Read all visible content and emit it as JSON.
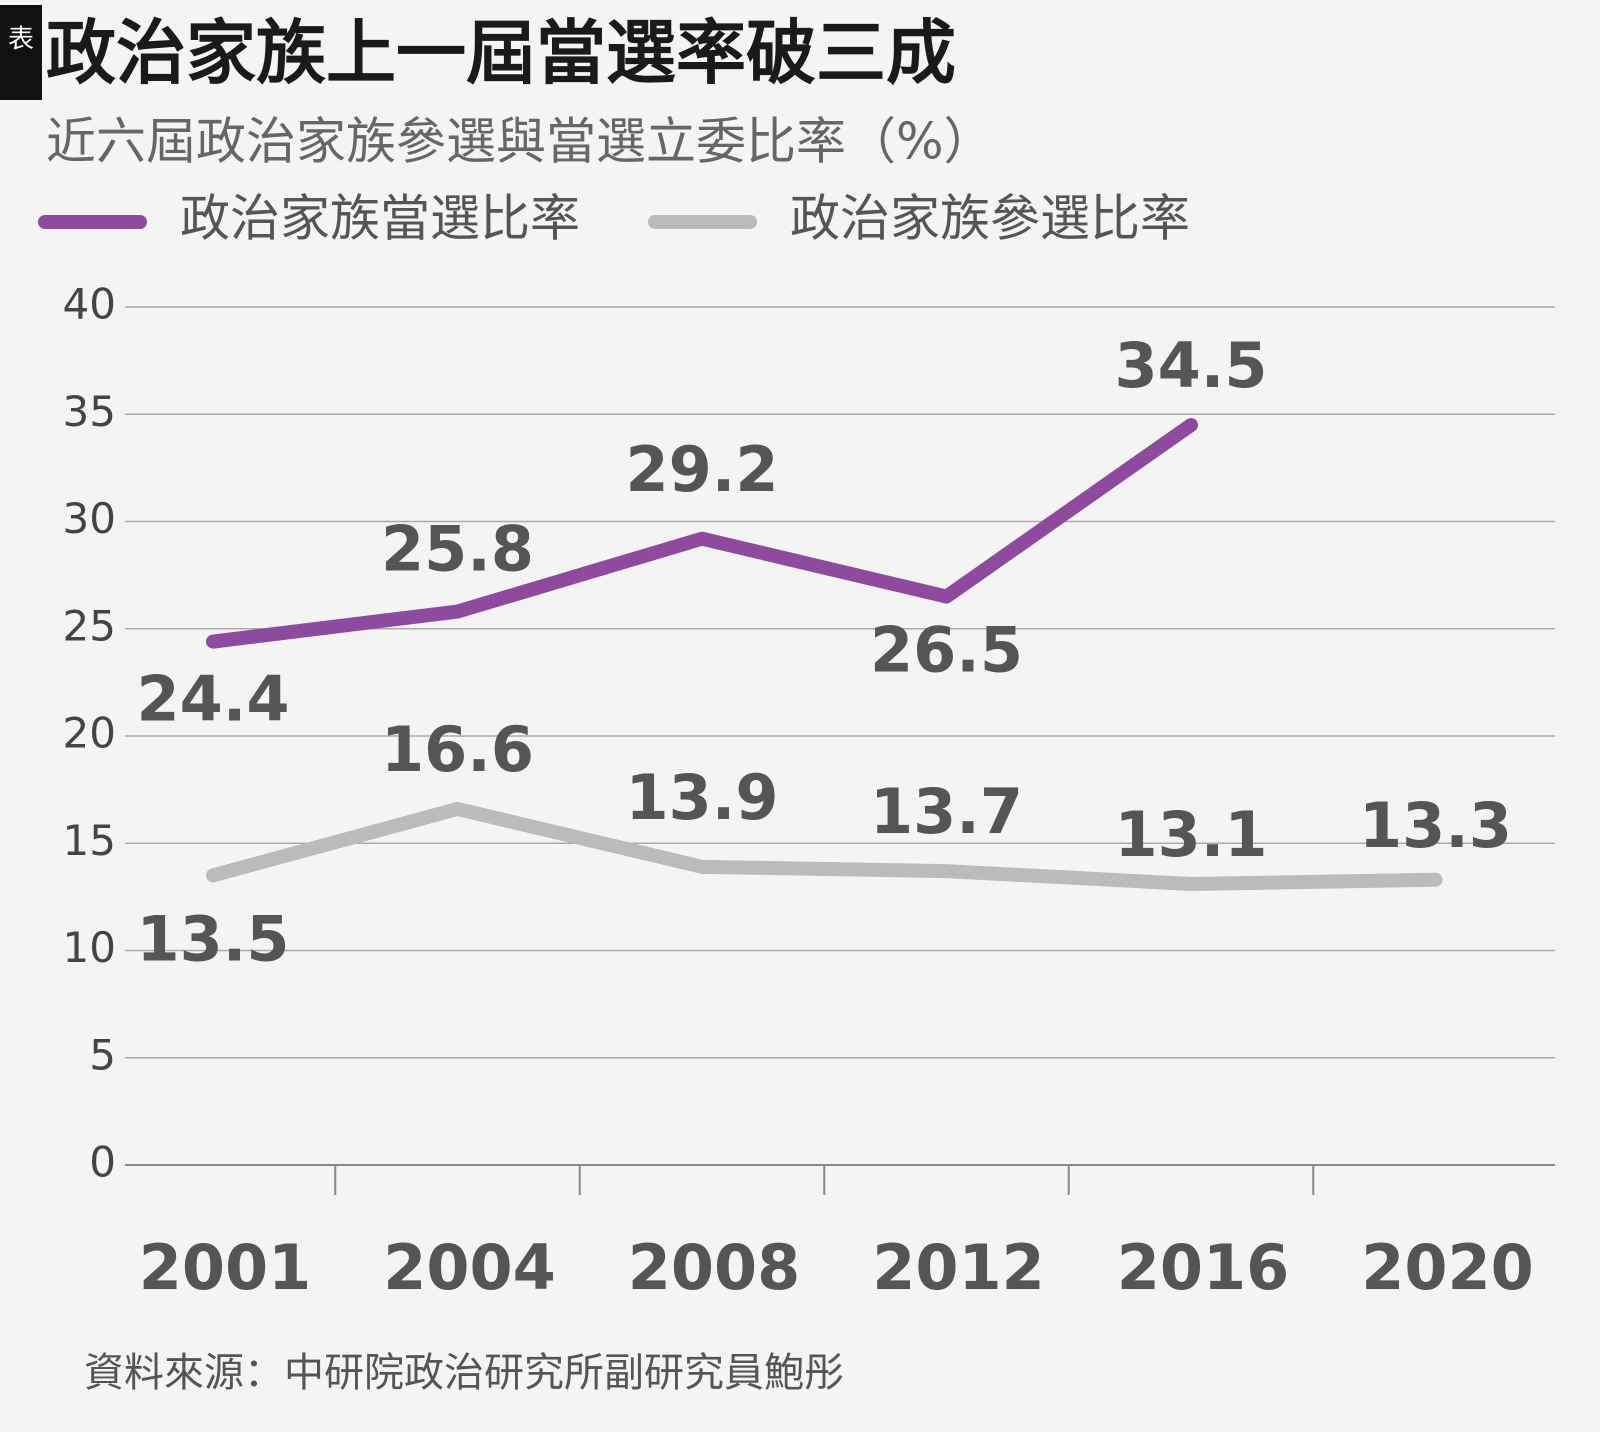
{
  "badge": "表",
  "chart_data": {
    "type": "line",
    "title": "政治家族上一屆當選率破三成",
    "subtitle": "近六屆政治家族參選與當選立委比率（%）",
    "categories": [
      "2001",
      "2004",
      "2008",
      "2012",
      "2016",
      "2020"
    ],
    "series": [
      {
        "name": "政治家族當選比率",
        "color": "#8e4a9c",
        "values": [
          24.4,
          25.8,
          29.2,
          26.5,
          34.5,
          null
        ]
      },
      {
        "name": "政治家族參選比率",
        "color": "#bbbbbb",
        "values": [
          13.5,
          16.6,
          13.9,
          13.7,
          13.1,
          13.3
        ]
      }
    ],
    "ylim": [
      0,
      40
    ],
    "yticks": [
      0,
      5,
      10,
      15,
      20,
      25,
      30,
      35,
      40
    ],
    "grid": true,
    "source": "資料來源：中研院政治研究所副研究員鮑彤"
  }
}
